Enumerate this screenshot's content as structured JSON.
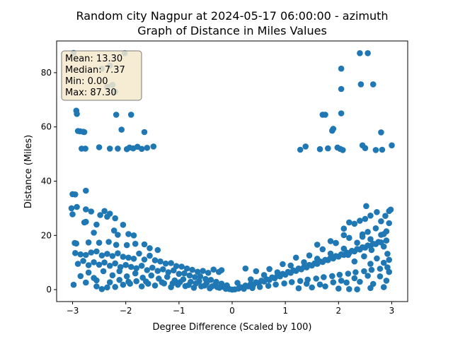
{
  "chart_data": {
    "type": "scatter",
    "title_line1": "Random city Nagpur at 2024-05-17 06:00:00  - azimuth",
    "title_line2": "Graph of Distance in Miles Values",
    "xlabel": "Degree Difference (Scaled by 100)",
    "ylabel": "Distance (Miles)",
    "xlim": [
      -3.3,
      3.3
    ],
    "ylim": [
      -4.4,
      91.7
    ],
    "xticks": [
      -3,
      -2,
      -1,
      0,
      1,
      2,
      3
    ],
    "yticks": [
      0,
      20,
      40,
      60,
      80
    ],
    "grid": false,
    "point_color": "#1f77b4",
    "stats_box": {
      "mean": "Mean: 13.30",
      "median": "Median: 7.37",
      "min": "Min: 0.00",
      "max": "Max: 87.30",
      "background": "#f5e9cc"
    },
    "points": [
      [
        -2.98,
        87.3
      ],
      [
        -2.93,
        66
      ],
      [
        -2.92,
        64.8
      ],
      [
        -2.9,
        58.5
      ],
      [
        -2.86,
        58.4
      ],
      [
        -2.8,
        58.2
      ],
      [
        -2.78,
        58.1
      ],
      [
        -2.83,
        52
      ],
      [
        -2.76,
        52
      ],
      [
        -2.5,
        52.5
      ],
      [
        -2.3,
        52
      ],
      [
        -2.45,
        81.5
      ],
      [
        -2.3,
        82.6
      ],
      [
        -2.25,
        75.5
      ],
      [
        -2.35,
        74.8
      ],
      [
        -2.2,
        73
      ],
      [
        -2.02,
        87.2
      ],
      [
        -2.08,
        59
      ],
      [
        -2.15,
        52
      ],
      [
        -1.98,
        51.8
      ],
      [
        -1.93,
        52.4
      ],
      [
        -1.86,
        52.1
      ],
      [
        -1.78,
        52.7
      ],
      [
        -1.7,
        51.9
      ],
      [
        -1.6,
        52.3
      ],
      [
        -1.48,
        52.8
      ],
      [
        -1.9,
        64.5
      ],
      [
        -1.65,
        58.1
      ],
      [
        -2.18,
        64.5
      ],
      [
        1.28,
        51.6
      ],
      [
        1.38,
        52.8
      ],
      [
        1.65,
        51.8
      ],
      [
        1.7,
        64.5
      ],
      [
        1.75,
        64.5
      ],
      [
        1.8,
        52.1
      ],
      [
        1.88,
        58.6
      ],
      [
        1.9,
        59.3
      ],
      [
        1.98,
        52.4
      ],
      [
        2.03,
        51.9
      ],
      [
        2.08,
        51.5
      ],
      [
        2.05,
        81.5
      ],
      [
        2.05,
        74
      ],
      [
        2.05,
        65
      ],
      [
        2.4,
        87.2
      ],
      [
        2.42,
        75.7
      ],
      [
        2.55,
        87.2
      ],
      [
        2.5,
        52.2
      ],
      [
        2.45,
        53.2
      ],
      [
        2.65,
        75.7
      ],
      [
        2.7,
        51.5
      ],
      [
        2.8,
        58
      ],
      [
        2.82,
        51.6
      ],
      [
        3.0,
        53.2
      ],
      [
        -3.0,
        35.2
      ],
      [
        -2.95,
        35.1
      ],
      [
        -2.75,
        36.5
      ],
      [
        -3.02,
        30
      ],
      [
        -3.0,
        27.8
      ],
      [
        -2.92,
        30.5
      ],
      [
        -2.75,
        29.6
      ],
      [
        -2.65,
        28.8
      ],
      [
        -2.48,
        27.5
      ],
      [
        -2.4,
        29
      ],
      [
        -2.3,
        28
      ],
      [
        -2.2,
        26.3
      ],
      [
        -2.35,
        26.9
      ],
      [
        -2.75,
        25
      ],
      [
        -2.78,
        24.8
      ],
      [
        -2.55,
        24
      ],
      [
        -2.05,
        23.9
      ],
      [
        -2.6,
        21
      ],
      [
        -2.22,
        21.8
      ],
      [
        -2.15,
        20.2
      ],
      [
        -1.95,
        20.5
      ],
      [
        -1.85,
        20
      ],
      [
        -2.96,
        17.2
      ],
      [
        -2.93,
        17
      ],
      [
        -2.7,
        17.4
      ],
      [
        -2.5,
        17.3
      ],
      [
        -2.32,
        17.6
      ],
      [
        -2.18,
        16.5
      ],
      [
        -1.98,
        16.4
      ],
      [
        -1.82,
        16.9
      ],
      [
        -1.65,
        16.7
      ],
      [
        -1.55,
        15.3
      ],
      [
        -1.4,
        14.6
      ],
      [
        -2.95,
        13.5
      ],
      [
        -2.85,
        13
      ],
      [
        -2.75,
        12.8
      ],
      [
        -2.65,
        13.7
      ],
      [
        -2.55,
        14.1
      ],
      [
        -2.45,
        12.6
      ],
      [
        -2.35,
        13.2
      ],
      [
        -2.25,
        12.4
      ],
      [
        -2.15,
        13.4
      ],
      [
        -2.05,
        12.1
      ],
      [
        -1.95,
        11.8
      ],
      [
        -1.85,
        11.4
      ],
      [
        -1.75,
        13.3
      ],
      [
        -1.65,
        11.1
      ],
      [
        -1.55,
        12.5
      ],
      [
        -1.45,
        10.8
      ],
      [
        -1.35,
        10.4
      ],
      [
        -1.25,
        9.6
      ],
      [
        -1.15,
        9.8
      ],
      [
        -1.05,
        8.7
      ],
      [
        -0.95,
        8.5
      ],
      [
        -0.85,
        7.8
      ],
      [
        -0.75,
        7.3
      ],
      [
        -0.65,
        6.6
      ],
      [
        -0.55,
        6.9
      ],
      [
        -0.45,
        6.2
      ],
      [
        -0.35,
        7.4
      ],
      [
        -0.25,
        6.5
      ],
      [
        -0.2,
        7.2
      ],
      [
        -2.9,
        9.5
      ],
      [
        -2.8,
        10.6
      ],
      [
        -2.7,
        9
      ],
      [
        -2.6,
        10.1
      ],
      [
        -2.5,
        9.2
      ],
      [
        -2.4,
        10
      ],
      [
        -2.3,
        8.8
      ],
      [
        -2.2,
        9.7
      ],
      [
        -2.1,
        8.3
      ],
      [
        -2.0,
        9.1
      ],
      [
        -1.9,
        8.4
      ],
      [
        -1.8,
        7.9
      ],
      [
        -1.7,
        8.8
      ],
      [
        -1.6,
        7.2
      ],
      [
        -1.5,
        8.1
      ],
      [
        -1.4,
        6.9
      ],
      [
        -1.3,
        7.5
      ],
      [
        -1.2,
        6.4
      ],
      [
        -1.1,
        7.1
      ],
      [
        -1.0,
        5.8
      ],
      [
        -0.9,
        6
      ],
      [
        -0.8,
        5.2
      ],
      [
        -0.7,
        4.6
      ],
      [
        -0.6,
        4.9
      ],
      [
        -0.5,
        3.9
      ],
      [
        -0.4,
        3.6
      ],
      [
        -0.3,
        2.9
      ],
      [
        -0.2,
        2.2
      ],
      [
        -0.1,
        1.6
      ],
      [
        -2.85,
        5
      ],
      [
        -2.7,
        6.3
      ],
      [
        -2.6,
        4.3
      ],
      [
        -2.42,
        6.8
      ],
      [
        -2.25,
        5.3
      ],
      [
        -2.12,
        6.8
      ],
      [
        -1.98,
        4.9
      ],
      [
        -1.82,
        6
      ],
      [
        -1.68,
        4.4
      ],
      [
        -1.52,
        5.2
      ],
      [
        -1.38,
        4.1
      ],
      [
        -1.22,
        4.7
      ],
      [
        -1.08,
        3.4
      ],
      [
        -0.92,
        3.8
      ],
      [
        -0.78,
        2.9
      ],
      [
        -0.62,
        3.1
      ],
      [
        -0.48,
        2.4
      ],
      [
        -0.32,
        1.8
      ],
      [
        -0.18,
        1.1
      ],
      [
        -0.08,
        0.6
      ],
      [
        -2.98,
        1.8
      ],
      [
        -2.75,
        2.6
      ],
      [
        -2.55,
        1.2
      ],
      [
        -2.45,
        0.2
      ],
      [
        -2.35,
        0.8
      ],
      [
        -2.2,
        1
      ],
      [
        -2.05,
        1.8
      ],
      [
        -1.95,
        2.9
      ],
      [
        -1.8,
        3.1
      ],
      [
        -1.7,
        1.2
      ],
      [
        -1.58,
        2.2
      ],
      [
        -1.45,
        1.5
      ],
      [
        -1.28,
        2.3
      ],
      [
        -1.15,
        0.9
      ],
      [
        -1.02,
        1.8
      ],
      [
        -0.88,
        1.3
      ],
      [
        -0.72,
        0.7
      ],
      [
        -0.58,
        1.2
      ],
      [
        -0.42,
        0.5
      ],
      [
        -0.28,
        0.9
      ],
      [
        -0.12,
        0.3
      ],
      [
        0.0,
        0.0
      ],
      [
        -2.55,
        3.4
      ],
      [
        -2.3,
        2.7
      ],
      [
        -2.12,
        3.6
      ],
      [
        -1.92,
        2.2
      ],
      [
        -1.62,
        3
      ],
      [
        -1.32,
        2.7
      ],
      [
        -1.12,
        2.3
      ],
      [
        -0.98,
        2.8
      ],
      [
        -0.82,
        1.7
      ],
      [
        -0.68,
        2.3
      ],
      [
        -0.52,
        1.5
      ],
      [
        -0.38,
        1.2
      ],
      [
        -0.24,
        0.7
      ],
      [
        -0.05,
        0.2
      ],
      [
        0.05,
        0.1
      ],
      [
        0.12,
        0.4
      ],
      [
        0.2,
        0.8
      ],
      [
        0.3,
        1.2
      ],
      [
        0.4,
        1.8
      ],
      [
        0.5,
        2.4
      ],
      [
        0.6,
        3
      ],
      [
        0.7,
        3.6
      ],
      [
        0.8,
        4.2
      ],
      [
        0.9,
        4.9
      ],
      [
        1.0,
        5.5
      ],
      [
        1.1,
        6.2
      ],
      [
        1.2,
        6.9
      ],
      [
        1.3,
        7.5
      ],
      [
        1.4,
        8.2
      ],
      [
        1.5,
        8.9
      ],
      [
        1.6,
        9.5
      ],
      [
        1.7,
        10.2
      ],
      [
        1.8,
        10.9
      ],
      [
        1.9,
        11.5
      ],
      [
        2.0,
        12.2
      ],
      [
        2.1,
        12.8
      ],
      [
        2.2,
        13.5
      ],
      [
        2.3,
        14.1
      ],
      [
        2.4,
        14.8
      ],
      [
        2.5,
        15.5
      ],
      [
        2.6,
        16.1
      ],
      [
        2.7,
        16.8
      ],
      [
        2.8,
        17.4
      ],
      [
        2.9,
        18.1
      ],
      [
        0.15,
        0.9
      ],
      [
        0.25,
        1.5
      ],
      [
        0.35,
        2.1
      ],
      [
        0.45,
        2.7
      ],
      [
        0.55,
        3.3
      ],
      [
        0.65,
        3.8
      ],
      [
        0.75,
        4.5
      ],
      [
        0.85,
        5.1
      ],
      [
        0.95,
        5.8
      ],
      [
        1.05,
        6.5
      ],
      [
        1.15,
        7.1
      ],
      [
        1.25,
        7.8
      ],
      [
        1.35,
        8.4
      ],
      [
        1.45,
        9.1
      ],
      [
        1.55,
        9.7
      ],
      [
        1.65,
        10.4
      ],
      [
        1.75,
        11
      ],
      [
        1.85,
        11.7
      ],
      [
        1.95,
        12.4
      ],
      [
        2.05,
        13
      ],
      [
        2.15,
        13.7
      ],
      [
        2.25,
        14.3
      ],
      [
        2.35,
        15
      ],
      [
        2.45,
        15.6
      ],
      [
        2.55,
        16.3
      ],
      [
        2.65,
        16.9
      ],
      [
        2.75,
        17.6
      ],
      [
        0.22,
        0.3
      ],
      [
        0.38,
        0.6
      ],
      [
        0.52,
        1
      ],
      [
        0.68,
        1.4
      ],
      [
        0.82,
        1.9
      ],
      [
        0.98,
        2.3
      ],
      [
        1.12,
        2.8
      ],
      [
        1.28,
        3.2
      ],
      [
        1.42,
        3.7
      ],
      [
        1.58,
        4.1
      ],
      [
        1.72,
        4.6
      ],
      [
        1.88,
        5
      ],
      [
        2.02,
        5.5
      ],
      [
        2.18,
        5.9
      ],
      [
        2.32,
        6.4
      ],
      [
        2.48,
        6.8
      ],
      [
        2.62,
        7.3
      ],
      [
        2.78,
        7.7
      ],
      [
        2.92,
        8.2
      ],
      [
        0.1,
        2.5
      ],
      [
        0.35,
        3.8
      ],
      [
        0.6,
        5.4
      ],
      [
        0.85,
        6.4
      ],
      [
        1.1,
        8.9
      ],
      [
        1.35,
        10.1
      ],
      [
        1.6,
        11.4
      ],
      [
        1.85,
        13.3
      ],
      [
        2.1,
        15.1
      ],
      [
        2.35,
        17.3
      ],
      [
        2.6,
        18.6
      ],
      [
        2.85,
        20.5
      ],
      [
        0.25,
        7.8
      ],
      [
        0.45,
        6.8
      ],
      [
        0.7,
        7.6
      ],
      [
        0.95,
        9.4
      ],
      [
        1.2,
        11.8
      ],
      [
        1.45,
        12.6
      ],
      [
        1.7,
        14.9
      ],
      [
        1.95,
        17.2
      ],
      [
        2.2,
        19.1
      ],
      [
        2.45,
        20.4
      ],
      [
        2.7,
        22.6
      ],
      [
        2.95,
        24.5
      ],
      [
        1.25,
        0.5
      ],
      [
        1.5,
        0.8
      ],
      [
        1.75,
        1.2
      ],
      [
        2.0,
        0.4
      ],
      [
        2.2,
        0.2
      ],
      [
        2.35,
        0.1
      ],
      [
        2.6,
        0.6
      ],
      [
        2.85,
        0.9
      ],
      [
        1.4,
        2.2
      ],
      [
        1.65,
        1.9
      ],
      [
        1.9,
        2.7
      ],
      [
        2.15,
        2.6
      ],
      [
        2.4,
        2.9
      ],
      [
        2.65,
        2.1
      ],
      [
        2.9,
        3.3
      ],
      [
        2.1,
        22.5
      ],
      [
        2.2,
        24.8
      ],
      [
        2.3,
        24.3
      ],
      [
        2.4,
        25.4
      ],
      [
        2.5,
        26.1
      ],
      [
        2.6,
        27.3
      ],
      [
        2.72,
        28.6
      ],
      [
        2.8,
        25.2
      ],
      [
        2.88,
        27.2
      ],
      [
        2.95,
        29
      ],
      [
        2.98,
        29.5
      ],
      [
        2.52,
        30.8
      ],
      [
        1.85,
        17.9
      ],
      [
        1.6,
        16.6
      ],
      [
        2.45,
        19.5
      ],
      [
        2.55,
        21.3
      ],
      [
        2.8,
        20.2
      ],
      [
        2.9,
        21.5
      ],
      [
        2.95,
        11
      ],
      [
        2.92,
        13.2
      ],
      [
        2.85,
        15.9
      ],
      [
        2.62,
        14.6
      ],
      [
        2.18,
        12.8
      ],
      [
        2.48,
        12.3
      ],
      [
        2.72,
        11.5
      ],
      [
        2.3,
        10.4
      ],
      [
        2.6,
        9.5
      ],
      [
        2.85,
        9.9
      ],
      [
        2.95,
        6.5
      ],
      [
        2.78,
        4.9
      ],
      [
        2.55,
        5.1
      ],
      [
        2.3,
        4.2
      ],
      [
        2.05,
        3.3
      ],
      [
        1.95,
        17.2
      ],
      [
        2.1,
        20.1
      ]
    ]
  }
}
